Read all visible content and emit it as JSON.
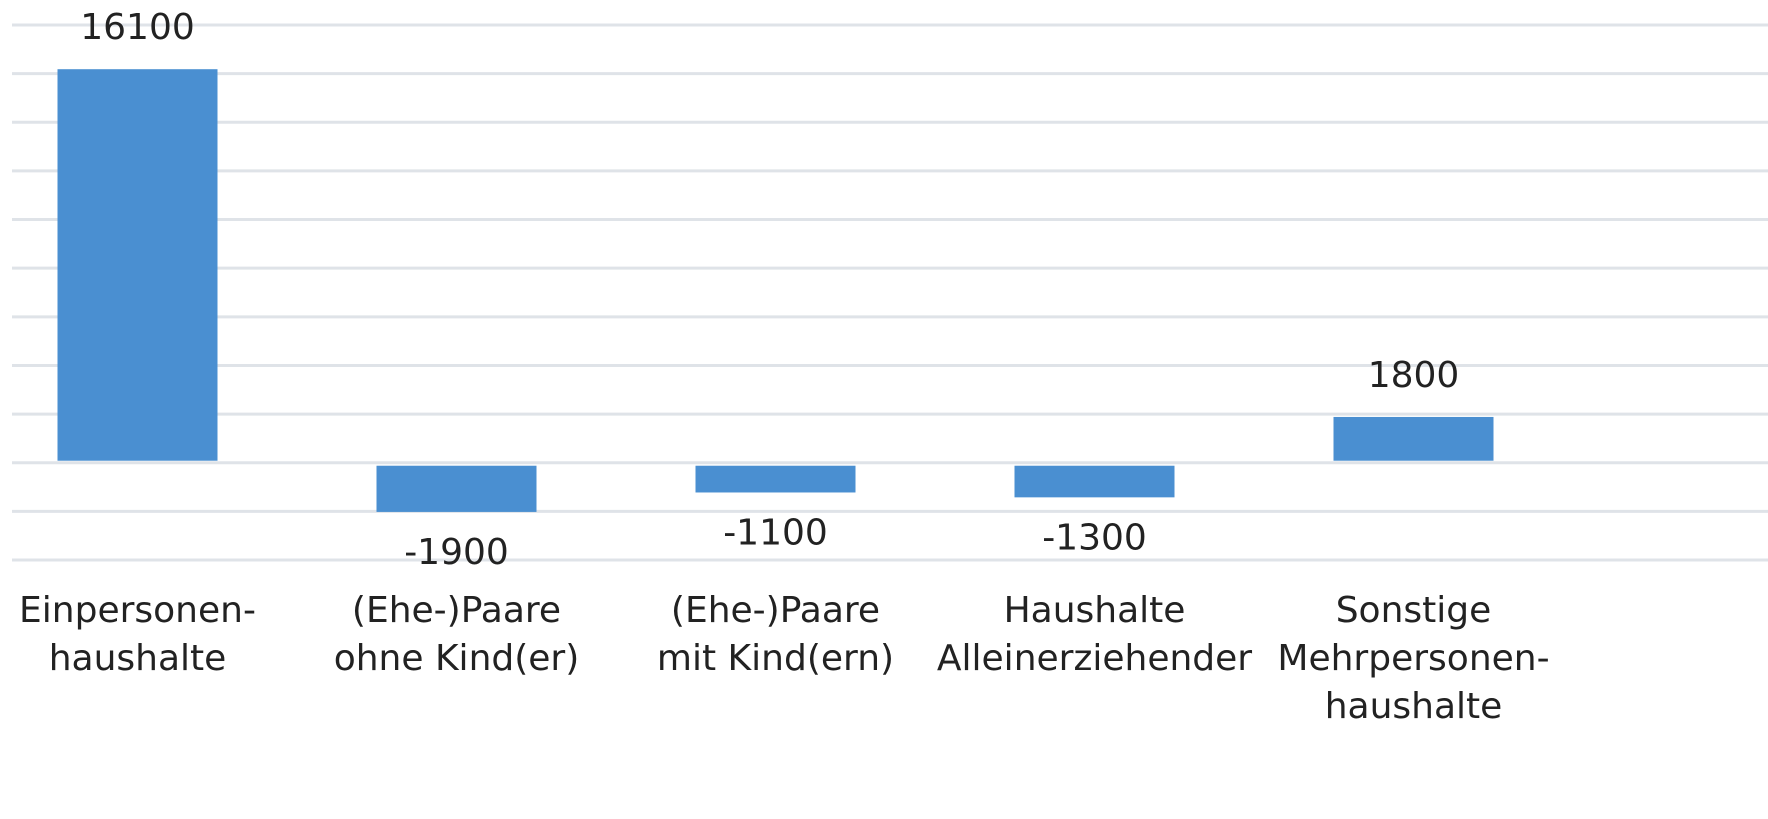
{
  "chart_data": {
    "type": "bar",
    "categories": [
      [
        "Einpersonen-",
        "haushalte"
      ],
      [
        "(Ehe-)Paare",
        "ohne Kind(er)"
      ],
      [
        "(Ehe-)Paare",
        "mit Kind(ern)"
      ],
      [
        "Haushalte",
        "Alleinerziehender"
      ],
      [
        "Sonstige",
        "Mehrpersonen-",
        "haushalte"
      ]
    ],
    "values": [
      16100,
      -1900,
      -1100,
      -1300,
      1800
    ],
    "color": "#4a8fd1",
    "ylim": [
      -4000,
      18000
    ],
    "yticks": [
      -4000,
      -2000,
      0,
      2000,
      4000,
      6000,
      8000,
      10000,
      12000,
      14000,
      16000,
      18000
    ],
    "grid": true
  }
}
